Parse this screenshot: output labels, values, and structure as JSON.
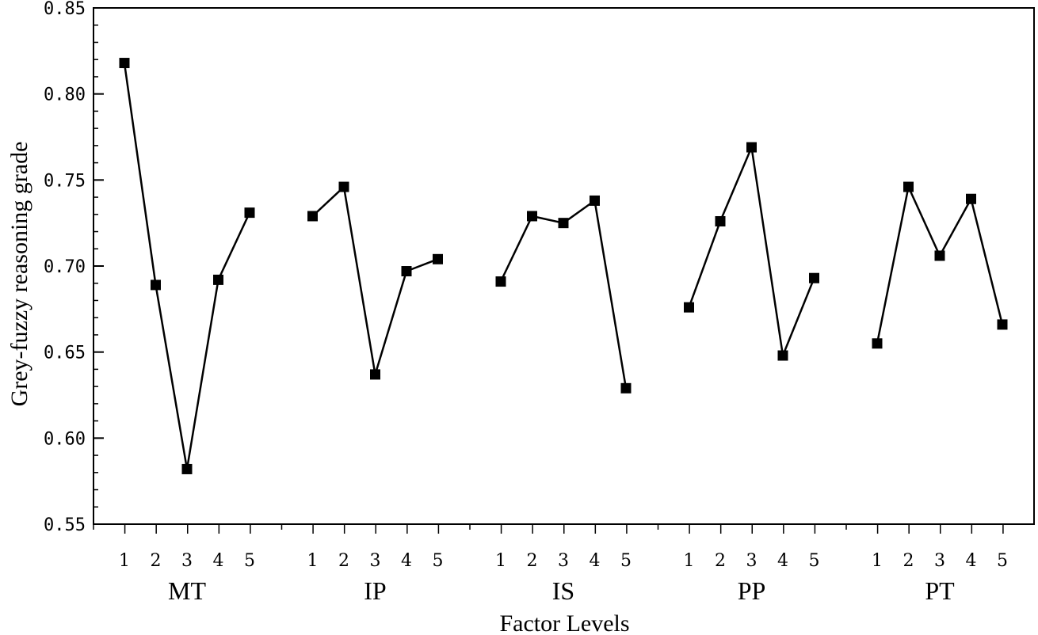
{
  "chart_data": {
    "type": "line",
    "xlabel": "Factor Levels",
    "ylabel": "Grey-fuzzy reasoning grade",
    "ylim": [
      0.55,
      0.85
    ],
    "yticks": [
      "0.55",
      "0.60",
      "0.65",
      "0.70",
      "0.75",
      "0.80",
      "0.85"
    ],
    "grid": false,
    "levels": [
      "1",
      "2",
      "3",
      "4",
      "5"
    ],
    "groups": [
      {
        "label": "MT",
        "values": [
          0.818,
          0.689,
          0.582,
          0.692,
          0.731
        ]
      },
      {
        "label": "IP",
        "values": [
          0.729,
          0.746,
          0.637,
          0.697,
          0.704
        ]
      },
      {
        "label": "IS",
        "values": [
          0.691,
          0.729,
          0.725,
          0.738,
          0.629
        ]
      },
      {
        "label": "PP",
        "values": [
          0.676,
          0.726,
          0.769,
          0.648,
          0.693
        ]
      },
      {
        "label": "PT",
        "values": [
          0.655,
          0.746,
          0.706,
          0.739,
          0.666
        ]
      }
    ]
  }
}
